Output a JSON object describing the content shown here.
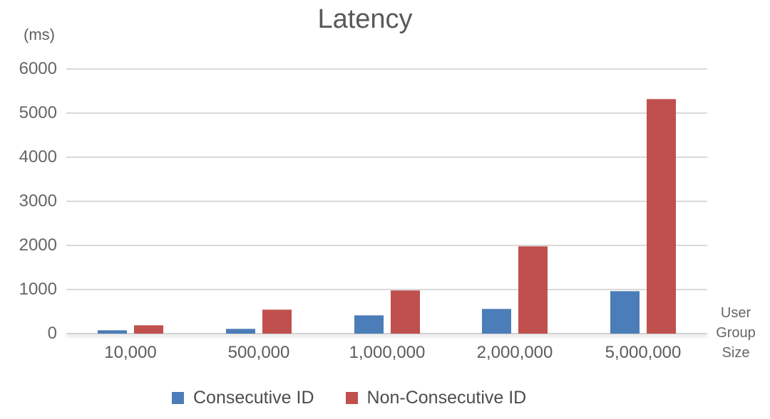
{
  "chart_data": {
    "type": "bar",
    "title": "Latency",
    "y_axis_unit": "(ms)",
    "x_axis_title_lines": [
      "User",
      "Group",
      "Size"
    ],
    "categories": [
      "10,000",
      "500,000",
      "1,000,000",
      "2,000,000",
      "5,000,000"
    ],
    "series": [
      {
        "name": "Consecutive ID",
        "color": "#4b7db8",
        "values": [
          75,
          110,
          425,
          560,
          965
        ]
      },
      {
        "name": "Non-Consecutive ID",
        "color": "#c0504d",
        "values": [
          200,
          550,
          990,
          1980,
          5330
        ]
      }
    ],
    "y_ticks": [
      0,
      1000,
      2000,
      3000,
      4000,
      5000,
      6000
    ],
    "ylim": [
      0,
      6000
    ],
    "grid": true,
    "grid_color": "#d9d9d9",
    "legend_position": "bottom"
  }
}
